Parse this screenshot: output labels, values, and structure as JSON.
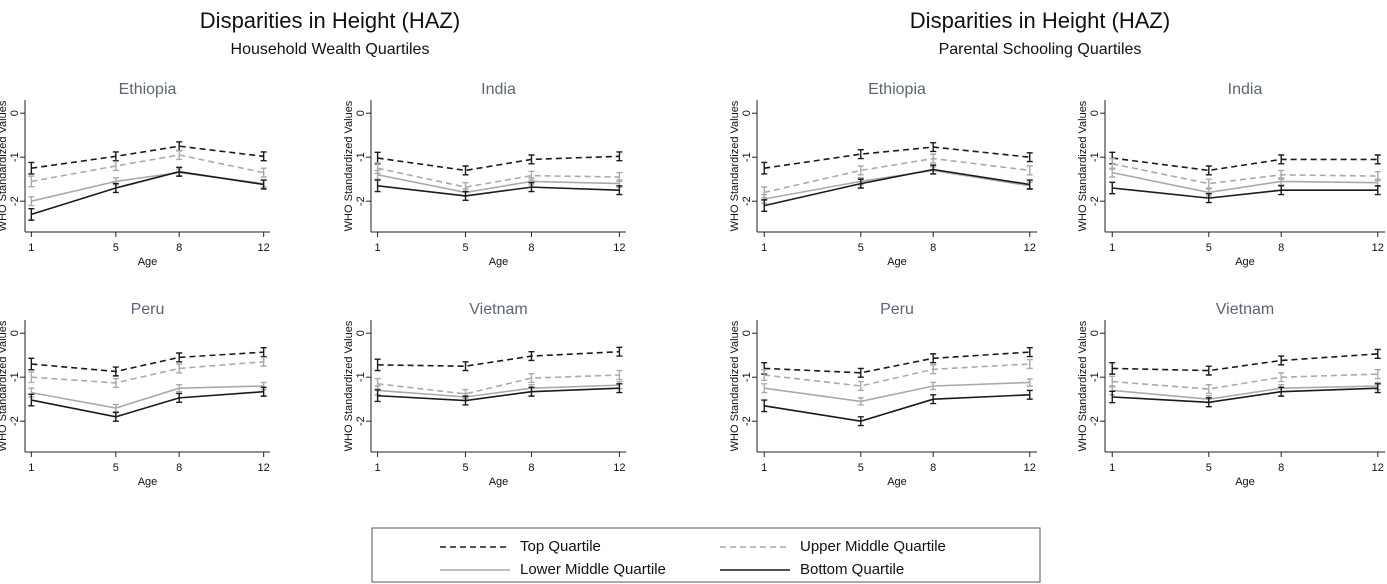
{
  "headers": [
    {
      "title": "Disparities in Height (HAZ)",
      "subtitle": "Household Wealth Quartiles"
    },
    {
      "title": "Disparities in Height (HAZ)",
      "subtitle": "Parental Schooling Quartiles"
    }
  ],
  "chart_data": [
    {
      "type": "line",
      "title": "Ethiopia",
      "x": [
        1,
        5,
        8,
        12
      ],
      "xlabel": "Age",
      "ylabel": "WHO Standardized Values",
      "xlim": [
        0.7,
        12.3
      ],
      "ylim": [
        -2.7,
        0.3
      ],
      "xticks": [
        1,
        5,
        8,
        12
      ],
      "yticks": [
        0,
        -1,
        -2
      ],
      "series": [
        {
          "name": "Top Quartile",
          "color": "#1a1a1a",
          "style": "dashed",
          "values": [
            -1.25,
            -0.98,
            -0.75,
            -0.98
          ],
          "errors": [
            0.13,
            0.1,
            0.1,
            0.1
          ]
        },
        {
          "name": "Upper Middle Quartile",
          "color": "#aaaaaa",
          "style": "dashed",
          "values": [
            -1.55,
            -1.2,
            -0.95,
            -1.35
          ],
          "errors": [
            0.12,
            0.1,
            0.1,
            0.1
          ]
        },
        {
          "name": "Lower Middle Quartile",
          "color": "#aaaaaa",
          "style": "solid",
          "values": [
            -2.0,
            -1.55,
            -1.35,
            -1.6
          ],
          "errors": [
            0.1,
            0.08,
            0.08,
            0.08
          ]
        },
        {
          "name": "Bottom Quartile",
          "color": "#1a1a1a",
          "style": "solid",
          "values": [
            -2.3,
            -1.7,
            -1.33,
            -1.62
          ],
          "errors": [
            0.13,
            0.1,
            0.1,
            0.1
          ]
        }
      ]
    },
    {
      "type": "line",
      "title": "India",
      "x": [
        1,
        5,
        8,
        12
      ],
      "xlabel": "Age",
      "ylabel": "WHO Standardized Values",
      "xlim": [
        0.7,
        12.3
      ],
      "ylim": [
        -2.7,
        0.3
      ],
      "xticks": [
        1,
        5,
        8,
        12
      ],
      "yticks": [
        0,
        -1,
        -2
      ],
      "series": [
        {
          "name": "Top Quartile",
          "color": "#1a1a1a",
          "style": "dashed",
          "values": [
            -1.02,
            -1.3,
            -1.05,
            -0.98
          ],
          "errors": [
            0.13,
            0.1,
            0.1,
            0.1
          ]
        },
        {
          "name": "Upper Middle Quartile",
          "color": "#aaaaaa",
          "style": "dashed",
          "values": [
            -1.25,
            -1.68,
            -1.42,
            -1.45
          ],
          "errors": [
            0.12,
            0.1,
            0.1,
            0.1
          ]
        },
        {
          "name": "Lower Middle Quartile",
          "color": "#aaaaaa",
          "style": "solid",
          "values": [
            -1.4,
            -1.8,
            -1.55,
            -1.6
          ],
          "errors": [
            0.1,
            0.08,
            0.08,
            0.08
          ]
        },
        {
          "name": "Bottom Quartile",
          "color": "#1a1a1a",
          "style": "solid",
          "values": [
            -1.65,
            -1.88,
            -1.68,
            -1.75
          ],
          "errors": [
            0.13,
            0.1,
            0.1,
            0.1
          ]
        }
      ]
    },
    {
      "type": "line",
      "title": "Peru",
      "x": [
        1,
        5,
        8,
        12
      ],
      "xlabel": "Age",
      "ylabel": "WHO Standardized Values",
      "xlim": [
        0.7,
        12.3
      ],
      "ylim": [
        -2.7,
        0.3
      ],
      "xticks": [
        1,
        5,
        8,
        12
      ],
      "yticks": [
        0,
        -1,
        -2
      ],
      "series": [
        {
          "name": "Top Quartile",
          "color": "#1a1a1a",
          "style": "dashed",
          "values": [
            -0.7,
            -0.87,
            -0.55,
            -0.43
          ],
          "errors": [
            0.13,
            0.1,
            0.1,
            0.1
          ]
        },
        {
          "name": "Upper Middle Quartile",
          "color": "#aaaaaa",
          "style": "dashed",
          "values": [
            -1.0,
            -1.13,
            -0.8,
            -0.65
          ],
          "errors": [
            0.12,
            0.1,
            0.1,
            0.1
          ]
        },
        {
          "name": "Lower Middle Quartile",
          "color": "#aaaaaa",
          "style": "solid",
          "values": [
            -1.35,
            -1.7,
            -1.25,
            -1.2
          ],
          "errors": [
            0.1,
            0.08,
            0.08,
            0.08
          ]
        },
        {
          "name": "Bottom Quartile",
          "color": "#1a1a1a",
          "style": "solid",
          "values": [
            -1.52,
            -1.9,
            -1.47,
            -1.33
          ],
          "errors": [
            0.13,
            0.1,
            0.1,
            0.1
          ]
        }
      ]
    },
    {
      "type": "line",
      "title": "Vietnam",
      "x": [
        1,
        5,
        8,
        12
      ],
      "xlabel": "Age",
      "ylabel": "WHO Standardized Values",
      "xlim": [
        0.7,
        12.3
      ],
      "ylim": [
        -2.7,
        0.3
      ],
      "xticks": [
        1,
        5,
        8,
        12
      ],
      "yticks": [
        0,
        -1,
        -2
      ],
      "series": [
        {
          "name": "Top Quartile",
          "color": "#1a1a1a",
          "style": "dashed",
          "values": [
            -0.72,
            -0.75,
            -0.52,
            -0.42
          ],
          "errors": [
            0.13,
            0.1,
            0.1,
            0.1
          ]
        },
        {
          "name": "Upper Middle Quartile",
          "color": "#aaaaaa",
          "style": "dashed",
          "values": [
            -1.15,
            -1.38,
            -1.02,
            -0.95
          ],
          "errors": [
            0.12,
            0.1,
            0.1,
            0.1
          ]
        },
        {
          "name": "Lower Middle Quartile",
          "color": "#aaaaaa",
          "style": "solid",
          "values": [
            -1.3,
            -1.45,
            -1.25,
            -1.18
          ],
          "errors": [
            0.1,
            0.08,
            0.08,
            0.08
          ]
        },
        {
          "name": "Bottom Quartile",
          "color": "#1a1a1a",
          "style": "solid",
          "values": [
            -1.42,
            -1.53,
            -1.33,
            -1.25
          ],
          "errors": [
            0.13,
            0.1,
            0.1,
            0.1
          ]
        }
      ]
    },
    {
      "type": "line",
      "title": "Ethiopia",
      "x": [
        1,
        5,
        8,
        12
      ],
      "xlabel": "Age",
      "ylabel": "WHO Standardized Values",
      "xlim": [
        0.7,
        12.3
      ],
      "ylim": [
        -2.7,
        0.3
      ],
      "xticks": [
        1,
        5,
        8,
        12
      ],
      "yticks": [
        0,
        -1,
        -2
      ],
      "series": [
        {
          "name": "Top Quartile",
          "color": "#1a1a1a",
          "style": "dashed",
          "values": [
            -1.25,
            -0.93,
            -0.77,
            -1.0
          ],
          "errors": [
            0.13,
            0.1,
            0.1,
            0.1
          ]
        },
        {
          "name": "Upper Middle Quartile",
          "color": "#aaaaaa",
          "style": "dashed",
          "values": [
            -1.8,
            -1.3,
            -1.03,
            -1.3
          ],
          "errors": [
            0.12,
            0.1,
            0.1,
            0.1
          ]
        },
        {
          "name": "Lower Middle Quartile",
          "color": "#aaaaaa",
          "style": "solid",
          "values": [
            -1.95,
            -1.55,
            -1.3,
            -1.65
          ],
          "errors": [
            0.1,
            0.08,
            0.08,
            0.08
          ]
        },
        {
          "name": "Bottom Quartile",
          "color": "#1a1a1a",
          "style": "solid",
          "values": [
            -2.1,
            -1.6,
            -1.28,
            -1.62
          ],
          "errors": [
            0.13,
            0.1,
            0.1,
            0.1
          ]
        }
      ]
    },
    {
      "type": "line",
      "title": "India",
      "x": [
        1,
        5,
        8,
        12
      ],
      "xlabel": "Age",
      "ylabel": "WHO Standardized Values",
      "xlim": [
        0.7,
        12.3
      ],
      "ylim": [
        -2.7,
        0.3
      ],
      "xticks": [
        1,
        5,
        8,
        12
      ],
      "yticks": [
        0,
        -1,
        -2
      ],
      "series": [
        {
          "name": "Top Quartile",
          "color": "#1a1a1a",
          "style": "dashed",
          "values": [
            -1.02,
            -1.3,
            -1.05,
            -1.05
          ],
          "errors": [
            0.13,
            0.1,
            0.1,
            0.1
          ]
        },
        {
          "name": "Upper Middle Quartile",
          "color": "#aaaaaa",
          "style": "dashed",
          "values": [
            -1.15,
            -1.6,
            -1.4,
            -1.43
          ],
          "errors": [
            0.12,
            0.1,
            0.1,
            0.1
          ]
        },
        {
          "name": "Lower Middle Quartile",
          "color": "#aaaaaa",
          "style": "solid",
          "values": [
            -1.35,
            -1.8,
            -1.55,
            -1.58
          ],
          "errors": [
            0.1,
            0.08,
            0.08,
            0.08
          ]
        },
        {
          "name": "Bottom Quartile",
          "color": "#1a1a1a",
          "style": "solid",
          "values": [
            -1.7,
            -1.93,
            -1.75,
            -1.75
          ],
          "errors": [
            0.13,
            0.1,
            0.1,
            0.1
          ]
        }
      ]
    },
    {
      "type": "line",
      "title": "Peru",
      "x": [
        1,
        5,
        8,
        12
      ],
      "xlabel": "Age",
      "ylabel": "WHO Standardized Values",
      "xlim": [
        0.7,
        12.3
      ],
      "ylim": [
        -2.7,
        0.3
      ],
      "xticks": [
        1,
        5,
        8,
        12
      ],
      "yticks": [
        0,
        -1,
        -2
      ],
      "series": [
        {
          "name": "Top Quartile",
          "color": "#1a1a1a",
          "style": "dashed",
          "values": [
            -0.8,
            -0.9,
            -0.57,
            -0.43
          ],
          "errors": [
            0.13,
            0.1,
            0.1,
            0.1
          ]
        },
        {
          "name": "Upper Middle Quartile",
          "color": "#aaaaaa",
          "style": "dashed",
          "values": [
            -0.95,
            -1.2,
            -0.82,
            -0.7
          ],
          "errors": [
            0.12,
            0.1,
            0.1,
            0.1
          ]
        },
        {
          "name": "Lower Middle Quartile",
          "color": "#aaaaaa",
          "style": "solid",
          "values": [
            -1.25,
            -1.55,
            -1.2,
            -1.12
          ],
          "errors": [
            0.1,
            0.08,
            0.08,
            0.08
          ]
        },
        {
          "name": "Bottom Quartile",
          "color": "#1a1a1a",
          "style": "solid",
          "values": [
            -1.65,
            -2.0,
            -1.5,
            -1.4
          ],
          "errors": [
            0.13,
            0.1,
            0.1,
            0.1
          ]
        }
      ]
    },
    {
      "type": "line",
      "title": "Vietnam",
      "x": [
        1,
        5,
        8,
        12
      ],
      "xlabel": "Age",
      "ylabel": "WHO Standardized Values",
      "xlim": [
        0.7,
        12.3
      ],
      "ylim": [
        -2.7,
        0.3
      ],
      "xticks": [
        1,
        5,
        8,
        12
      ],
      "yticks": [
        0,
        -1,
        -2
      ],
      "series": [
        {
          "name": "Top Quartile",
          "color": "#1a1a1a",
          "style": "dashed",
          "values": [
            -0.8,
            -0.85,
            -0.62,
            -0.47
          ],
          "errors": [
            0.13,
            0.1,
            0.1,
            0.1
          ]
        },
        {
          "name": "Upper Middle Quartile",
          "color": "#aaaaaa",
          "style": "dashed",
          "values": [
            -1.1,
            -1.27,
            -1.0,
            -0.93
          ],
          "errors": [
            0.12,
            0.1,
            0.1,
            0.1
          ]
        },
        {
          "name": "Lower Middle Quartile",
          "color": "#aaaaaa",
          "style": "solid",
          "values": [
            -1.3,
            -1.5,
            -1.25,
            -1.2
          ],
          "errors": [
            0.1,
            0.08,
            0.08,
            0.08
          ]
        },
        {
          "name": "Bottom Quartile",
          "color": "#1a1a1a",
          "style": "solid",
          "values": [
            -1.45,
            -1.57,
            -1.33,
            -1.25
          ],
          "errors": [
            0.13,
            0.1,
            0.1,
            0.1
          ]
        }
      ]
    }
  ]
}
